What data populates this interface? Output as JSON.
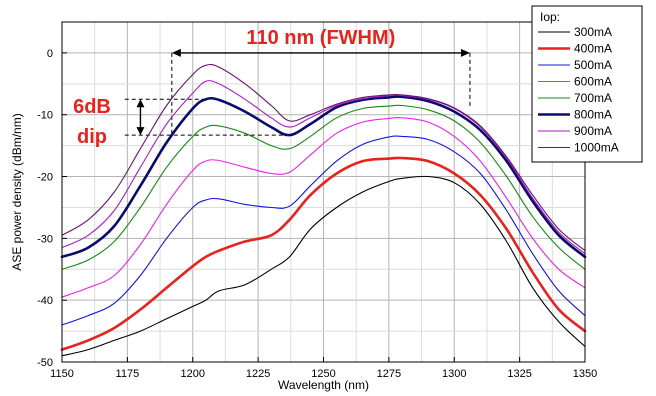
{
  "chart_data": {
    "type": "line",
    "title": "",
    "xlabel": "Wavelength (nm)",
    "ylabel": "ASE power density (dBm/nm)",
    "xlim": [
      1150,
      1350
    ],
    "ylim": [
      -50,
      5
    ],
    "x_ticks": [
      "1150",
      "1175",
      "1200",
      "1225",
      "1250",
      "1275",
      "1300",
      "1325",
      "1350"
    ],
    "y_ticks": [
      "0",
      "-10",
      "-20",
      "-30",
      "-40",
      "-50"
    ],
    "grid": true,
    "legend": {
      "title": "Iop:",
      "position": "top-right"
    },
    "x": [
      1150,
      1160,
      1170,
      1180,
      1190,
      1200,
      1205,
      1210,
      1220,
      1230,
      1237,
      1245,
      1255,
      1265,
      1275,
      1280,
      1290,
      1300,
      1310,
      1320,
      1330,
      1340,
      1350
    ],
    "series": [
      {
        "name": "300mA",
        "color": "#000000",
        "line_width": 1.1,
        "values": [
          -49.0,
          -48.0,
          -46.5,
          -45.0,
          -43.0,
          -41.0,
          -40.0,
          -38.5,
          -37.5,
          -35.0,
          -33.0,
          -28.5,
          -25.0,
          -22.5,
          -20.8,
          -20.3,
          -20.0,
          -21.0,
          -24.5,
          -30.5,
          -38.0,
          -43.5,
          -47.5
        ]
      },
      {
        "name": "400mA",
        "color": "#e8221c",
        "line_width": 2.6,
        "values": [
          -48.0,
          -46.5,
          -44.5,
          -41.5,
          -38.0,
          -34.5,
          -33.0,
          -32.0,
          -30.5,
          -29.5,
          -27.0,
          -23.0,
          -19.5,
          -17.5,
          -17.1,
          -17.0,
          -17.5,
          -19.5,
          -23.0,
          -28.5,
          -35.5,
          -41.5,
          -45.0
        ]
      },
      {
        "name": "500mA",
        "color": "#1414e6",
        "line_width": 1.1,
        "values": [
          -44.0,
          -42.5,
          -40.5,
          -36.0,
          -30.0,
          -25.0,
          -23.8,
          -23.6,
          -24.5,
          -25.0,
          -24.8,
          -21.5,
          -17.5,
          -14.8,
          -13.6,
          -13.5,
          -14.0,
          -16.0,
          -19.5,
          -25.5,
          -32.5,
          -38.5,
          -42.5
        ]
      },
      {
        "name": "600mA",
        "color": "#ee22ee",
        "line_width": 1.1,
        "values": [
          -39.5,
          -38.0,
          -36.0,
          -31.0,
          -24.5,
          -19.0,
          -17.5,
          -17.4,
          -18.5,
          -19.5,
          -19.3,
          -16.5,
          -13.0,
          -11.2,
          -10.6,
          -10.5,
          -11.2,
          -13.5,
          -17.5,
          -23.5,
          -30.0,
          -35.0,
          -38.0
        ]
      },
      {
        "name": "700mA",
        "color": "#148a14",
        "line_width": 1.1,
        "values": [
          -35.0,
          -33.5,
          -30.5,
          -25.0,
          -18.5,
          -13.5,
          -12.0,
          -11.8,
          -13.0,
          -15.0,
          -15.5,
          -13.5,
          -10.5,
          -9.0,
          -8.6,
          -8.5,
          -9.2,
          -11.0,
          -14.5,
          -20.0,
          -26.5,
          -31.5,
          -35.0
        ]
      },
      {
        "name": "800mA",
        "color": "#0a0a6e",
        "line_width": 2.6,
        "values": [
          -33.0,
          -31.5,
          -28.0,
          -21.5,
          -14.5,
          -9.0,
          -7.5,
          -7.6,
          -9.5,
          -12.0,
          -13.3,
          -11.5,
          -8.8,
          -7.6,
          -7.2,
          -7.1,
          -7.8,
          -9.5,
          -12.5,
          -17.5,
          -24.0,
          -29.5,
          -33.0
        ]
      },
      {
        "name": "900mA",
        "color": "#a81ec8",
        "line_width": 1.1,
        "values": [
          -31.5,
          -29.5,
          -25.5,
          -18.5,
          -11.5,
          -6.5,
          -4.6,
          -5.0,
          -7.5,
          -10.5,
          -12.0,
          -10.5,
          -8.5,
          -7.4,
          -6.9,
          -6.9,
          -7.5,
          -9.0,
          -12.0,
          -17.0,
          -23.5,
          -29.0,
          -32.5
        ]
      },
      {
        "name": "1000mA",
        "color": "#6a1470",
        "line_width": 1.1,
        "values": [
          -29.5,
          -27.0,
          -22.5,
          -15.5,
          -8.5,
          -3.5,
          -2.0,
          -2.3,
          -5.0,
          -8.5,
          -11.0,
          -10.0,
          -8.3,
          -7.2,
          -6.8,
          -6.8,
          -7.4,
          -8.9,
          -11.8,
          -16.8,
          -23.0,
          -28.5,
          -32.0
        ]
      }
    ],
    "annotations": {
      "fwhm_label": "110 nm (FWHM)",
      "fwhm_range": [
        1192,
        1306
      ],
      "fwhm_level": 0,
      "dip_label_line1": "6dB",
      "dip_label_line2": "dip",
      "dip_top": -7.5,
      "dip_bottom": -13.3,
      "dip_arrow_x": 1180
    }
  }
}
